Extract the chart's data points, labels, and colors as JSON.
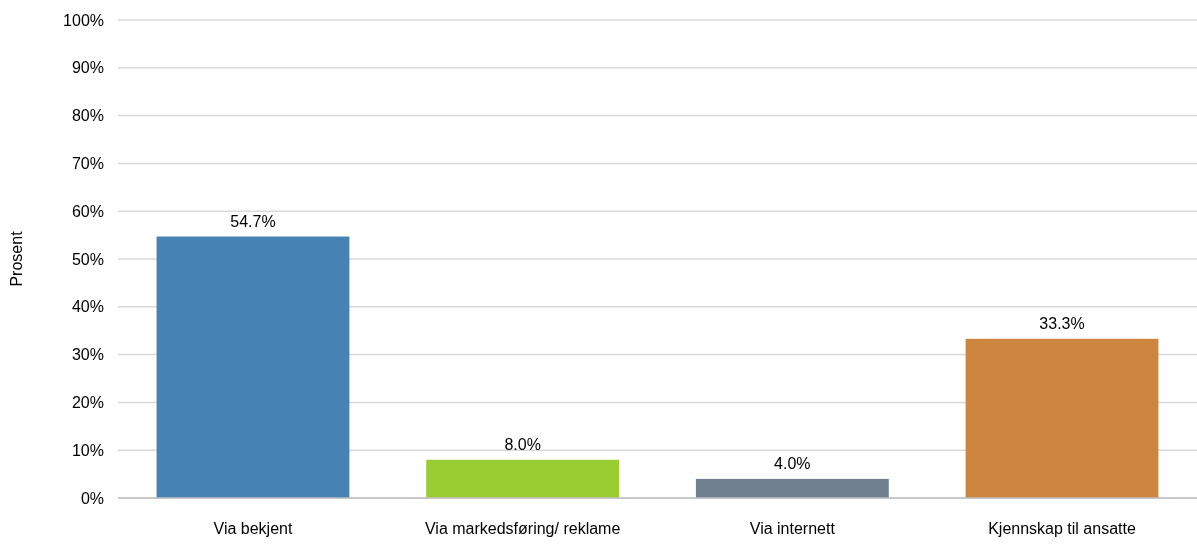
{
  "chart_data": {
    "type": "bar",
    "ylabel": "Prosent",
    "categories": [
      "Via bekjent",
      "Via markedsføring/ reklame",
      "Via internett",
      "Kjennskap til ansatte"
    ],
    "values": [
      54.7,
      8.0,
      4.0,
      33.3
    ],
    "colors": [
      "#4682b4",
      "#9acd32",
      "#708090",
      "#cd853f"
    ],
    "value_labels": [
      "54.7%",
      "8.0%",
      "4.0%",
      "33.3%"
    ],
    "ylim": [
      0,
      100
    ],
    "yticks": [
      {
        "value": 0,
        "label": "0%"
      },
      {
        "value": 10,
        "label": "10%"
      },
      {
        "value": 20,
        "label": "20%"
      },
      {
        "value": 30,
        "label": "30%"
      },
      {
        "value": 40,
        "label": "40%"
      },
      {
        "value": 50,
        "label": "50%"
      },
      {
        "value": 60,
        "label": "60%"
      },
      {
        "value": 70,
        "label": "70%"
      },
      {
        "value": 80,
        "label": "80%"
      },
      {
        "value": 90,
        "label": "90%"
      },
      {
        "value": 100,
        "label": "100%"
      }
    ],
    "grid": "y"
  }
}
